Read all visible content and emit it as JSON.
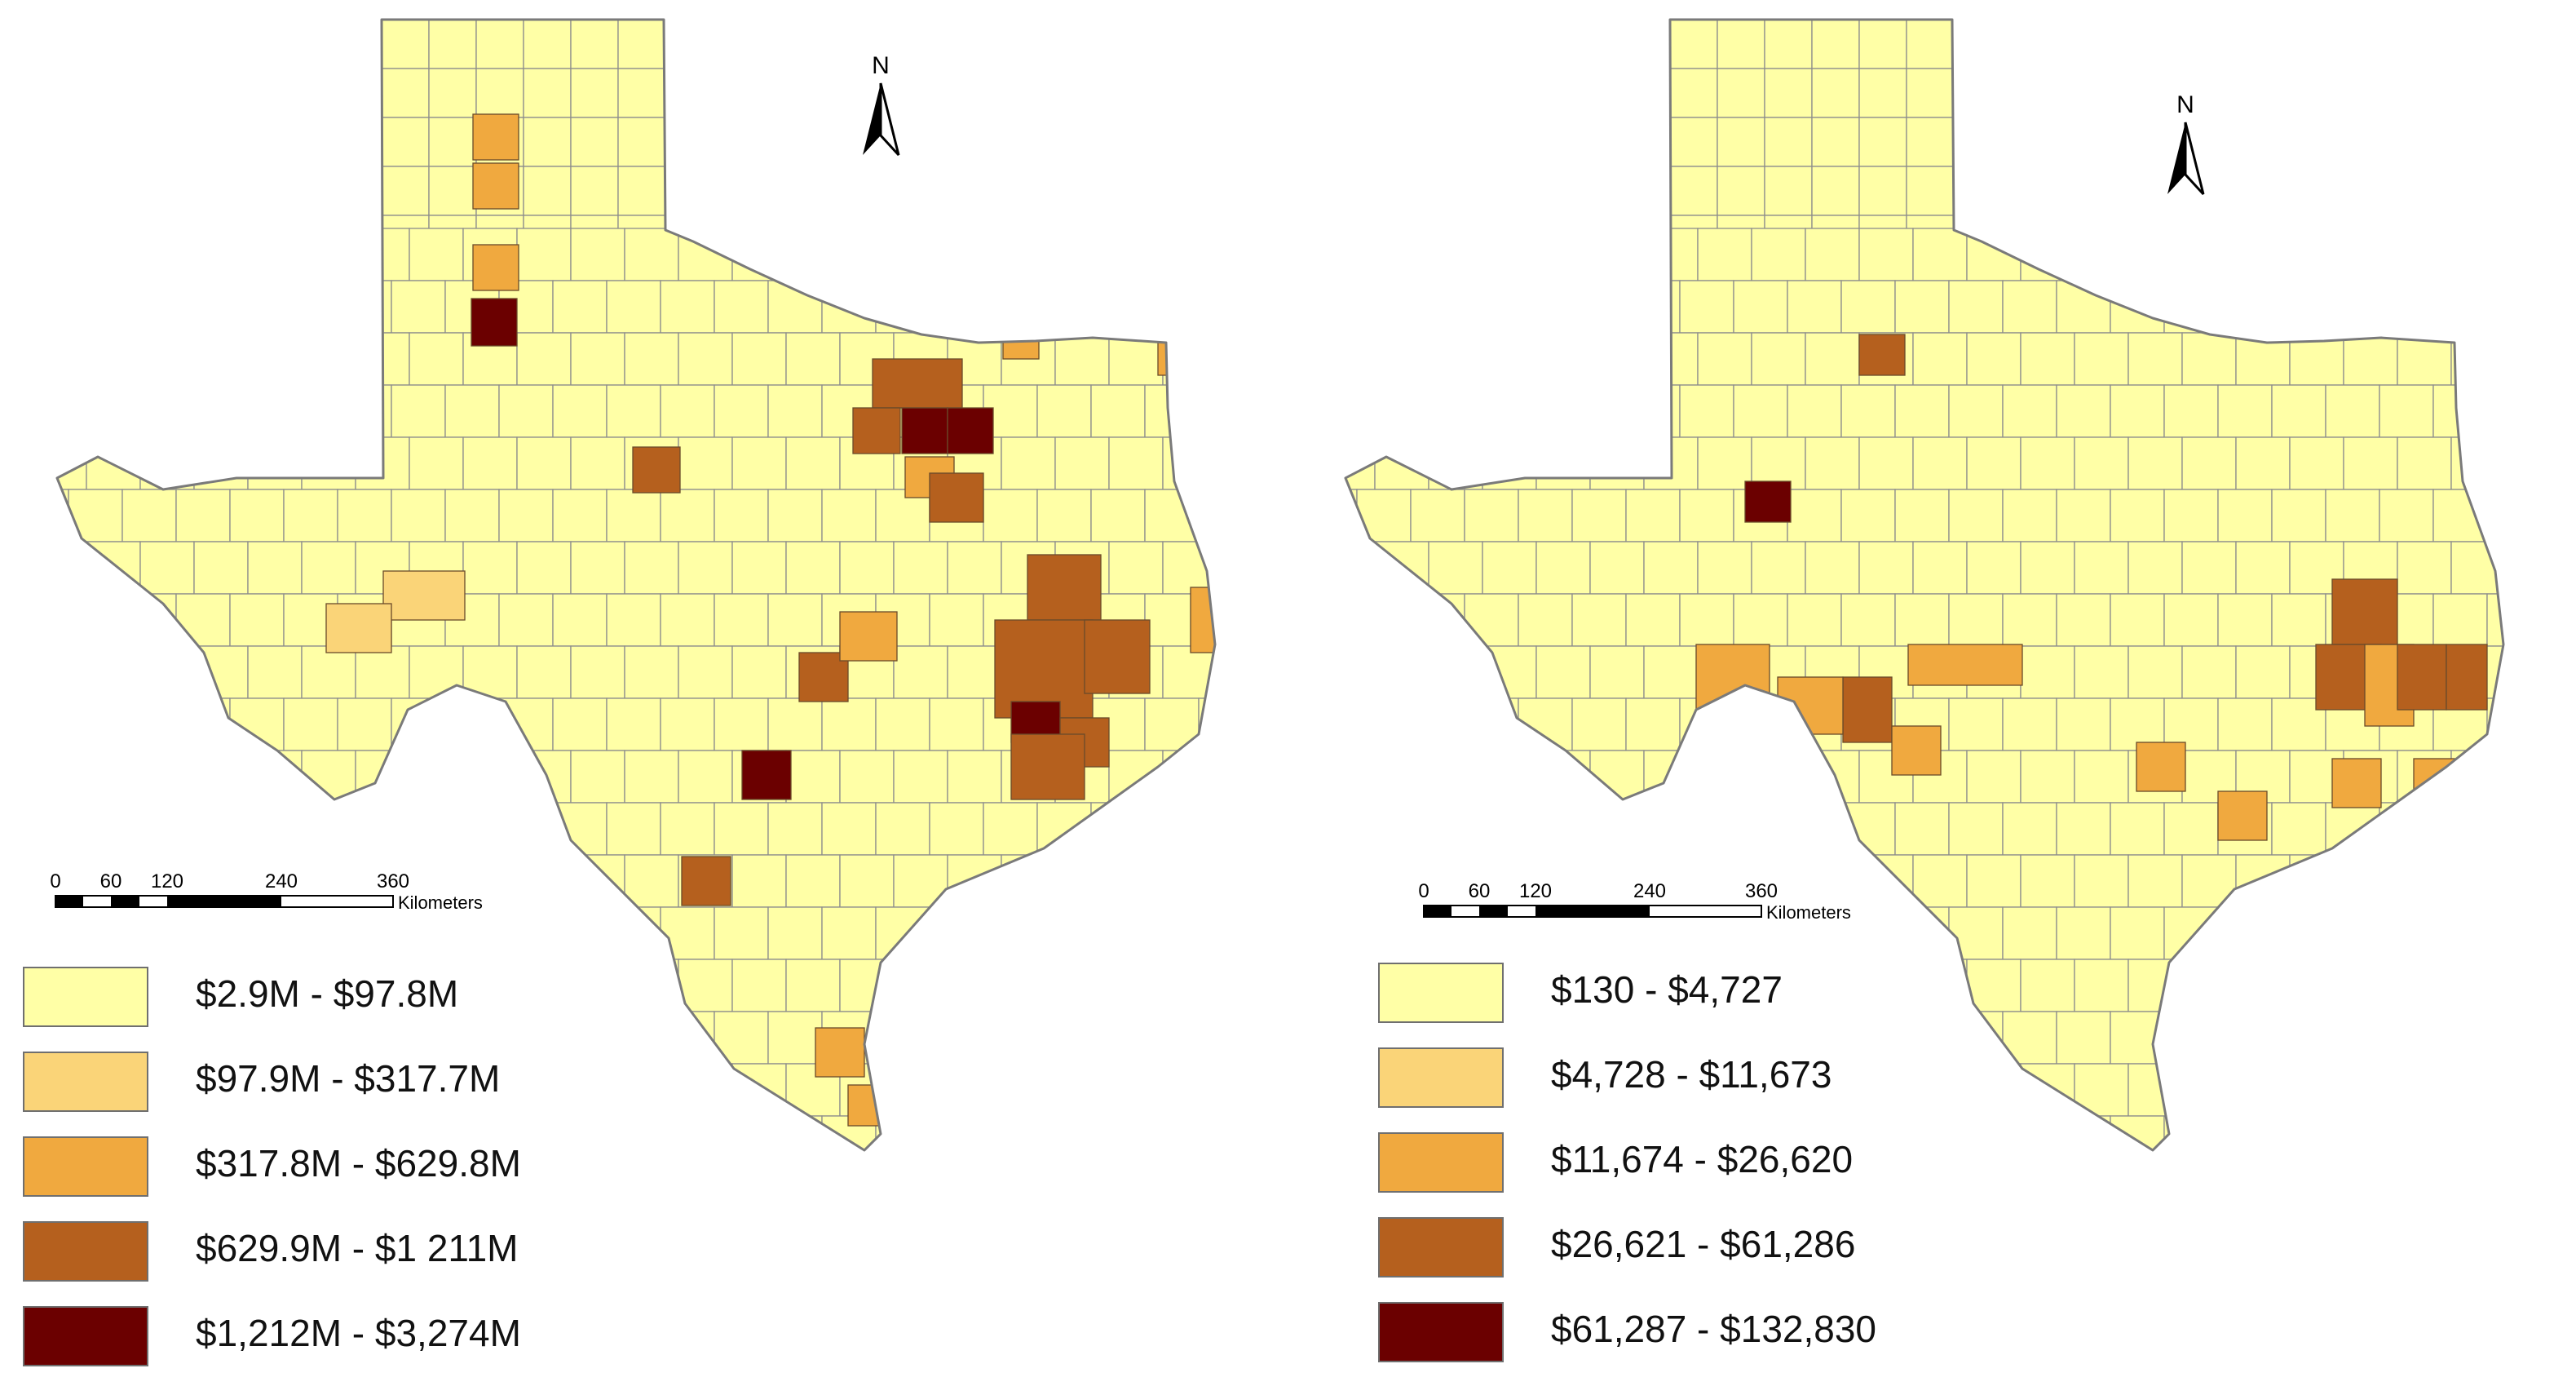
{
  "maps": [
    {
      "id": "left",
      "north_label": "N",
      "scale": {
        "ticks": [
          "0",
          "60",
          "120",
          "240",
          "360"
        ],
        "unit": "Kilometers"
      },
      "legend": [
        {
          "label": "$2.9M - $97.8M",
          "color": "#FFFFA6"
        },
        {
          "label": "$97.9M - $317.7M",
          "color": "#FAD478"
        },
        {
          "label": "$317.8M - $629.8M",
          "color": "#F0A93F"
        },
        {
          "label": "$629.9M - $1 211M",
          "color": "#B5601E"
        },
        {
          "label": "$1,212M - $3,274M",
          "color": "#6B0000"
        }
      ]
    },
    {
      "id": "right",
      "north_label": "N",
      "scale": {
        "ticks": [
          "0",
          "60",
          "120",
          "240",
          "360"
        ],
        "unit": "Kilometers"
      },
      "legend": [
        {
          "label": "$130 - $4,727",
          "color": "#FFFFA6"
        },
        {
          "label": "$4,728 - $11,673",
          "color": "#FAD478"
        },
        {
          "label": "$11,674 - $26,620",
          "color": "#F0A93F"
        },
        {
          "label": "$26,621 - $61,286",
          "color": "#B5601E"
        },
        {
          "label": "$61,287 - $132,830",
          "color": "#6B0000"
        }
      ]
    }
  ]
}
